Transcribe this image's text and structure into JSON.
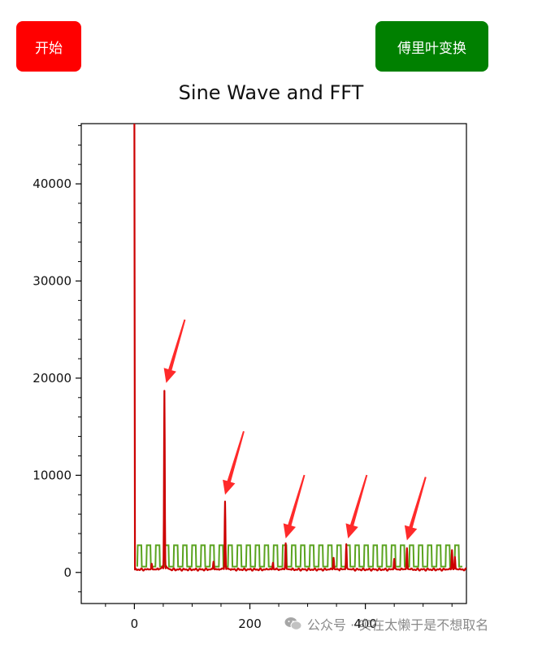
{
  "buttons": {
    "start_label": "开始",
    "fft_label": "傅里叶变换",
    "start_color": "#ff0000",
    "fft_color": "#008000"
  },
  "watermark": {
    "text": "公众号 · 实在太懒于是不想取名"
  },
  "chart_data": {
    "type": "line",
    "title": "Sine Wave and FFT",
    "xlabel": "",
    "ylabel": "",
    "xlim": [
      -92,
      575
    ],
    "ylim": [
      -3200,
      46200
    ],
    "x_ticks": [
      0,
      200,
      400
    ],
    "y_ticks": [
      0,
      10000,
      20000,
      30000,
      40000
    ],
    "grid": false,
    "legend": "none",
    "series": [
      {
        "color": "#5aa31f",
        "kind": "square-wave",
        "x_start": 5,
        "x_end": 568,
        "period": 15.7,
        "low": 600,
        "high": 2800
      },
      {
        "color": "#cc0000",
        "kind": "spectrum",
        "baseline": 300,
        "peaks": [
          {
            "x": 0,
            "y": 46200
          },
          {
            "x": 52,
            "y": 18700
          },
          {
            "x": 157,
            "y": 7300
          },
          {
            "x": 262,
            "y": 3000
          },
          {
            "x": 367,
            "y": 2900
          },
          {
            "x": 472,
            "y": 2500
          },
          {
            "x": 550,
            "y": 2300
          }
        ],
        "small_peaks": [
          {
            "x": 30,
            "y": 900
          },
          {
            "x": 137,
            "y": 1100
          },
          {
            "x": 240,
            "y": 1000
          },
          {
            "x": 345,
            "y": 1500
          },
          {
            "x": 450,
            "y": 1400
          },
          {
            "x": 555,
            "y": 1600
          }
        ]
      }
    ],
    "annotations": [
      {
        "type": "arrow",
        "color": "#ff2a2a",
        "target_x": 55,
        "target_y": 19500
      },
      {
        "type": "arrow",
        "color": "#ff2a2a",
        "target_x": 157,
        "target_y": 8000
      },
      {
        "type": "arrow",
        "color": "#ff2a2a",
        "target_x": 262,
        "target_y": 3500
      },
      {
        "type": "arrow",
        "color": "#ff2a2a",
        "target_x": 370,
        "target_y": 3500
      },
      {
        "type": "arrow",
        "color": "#ff2a2a",
        "target_x": 472,
        "target_y": 3300
      }
    ]
  }
}
